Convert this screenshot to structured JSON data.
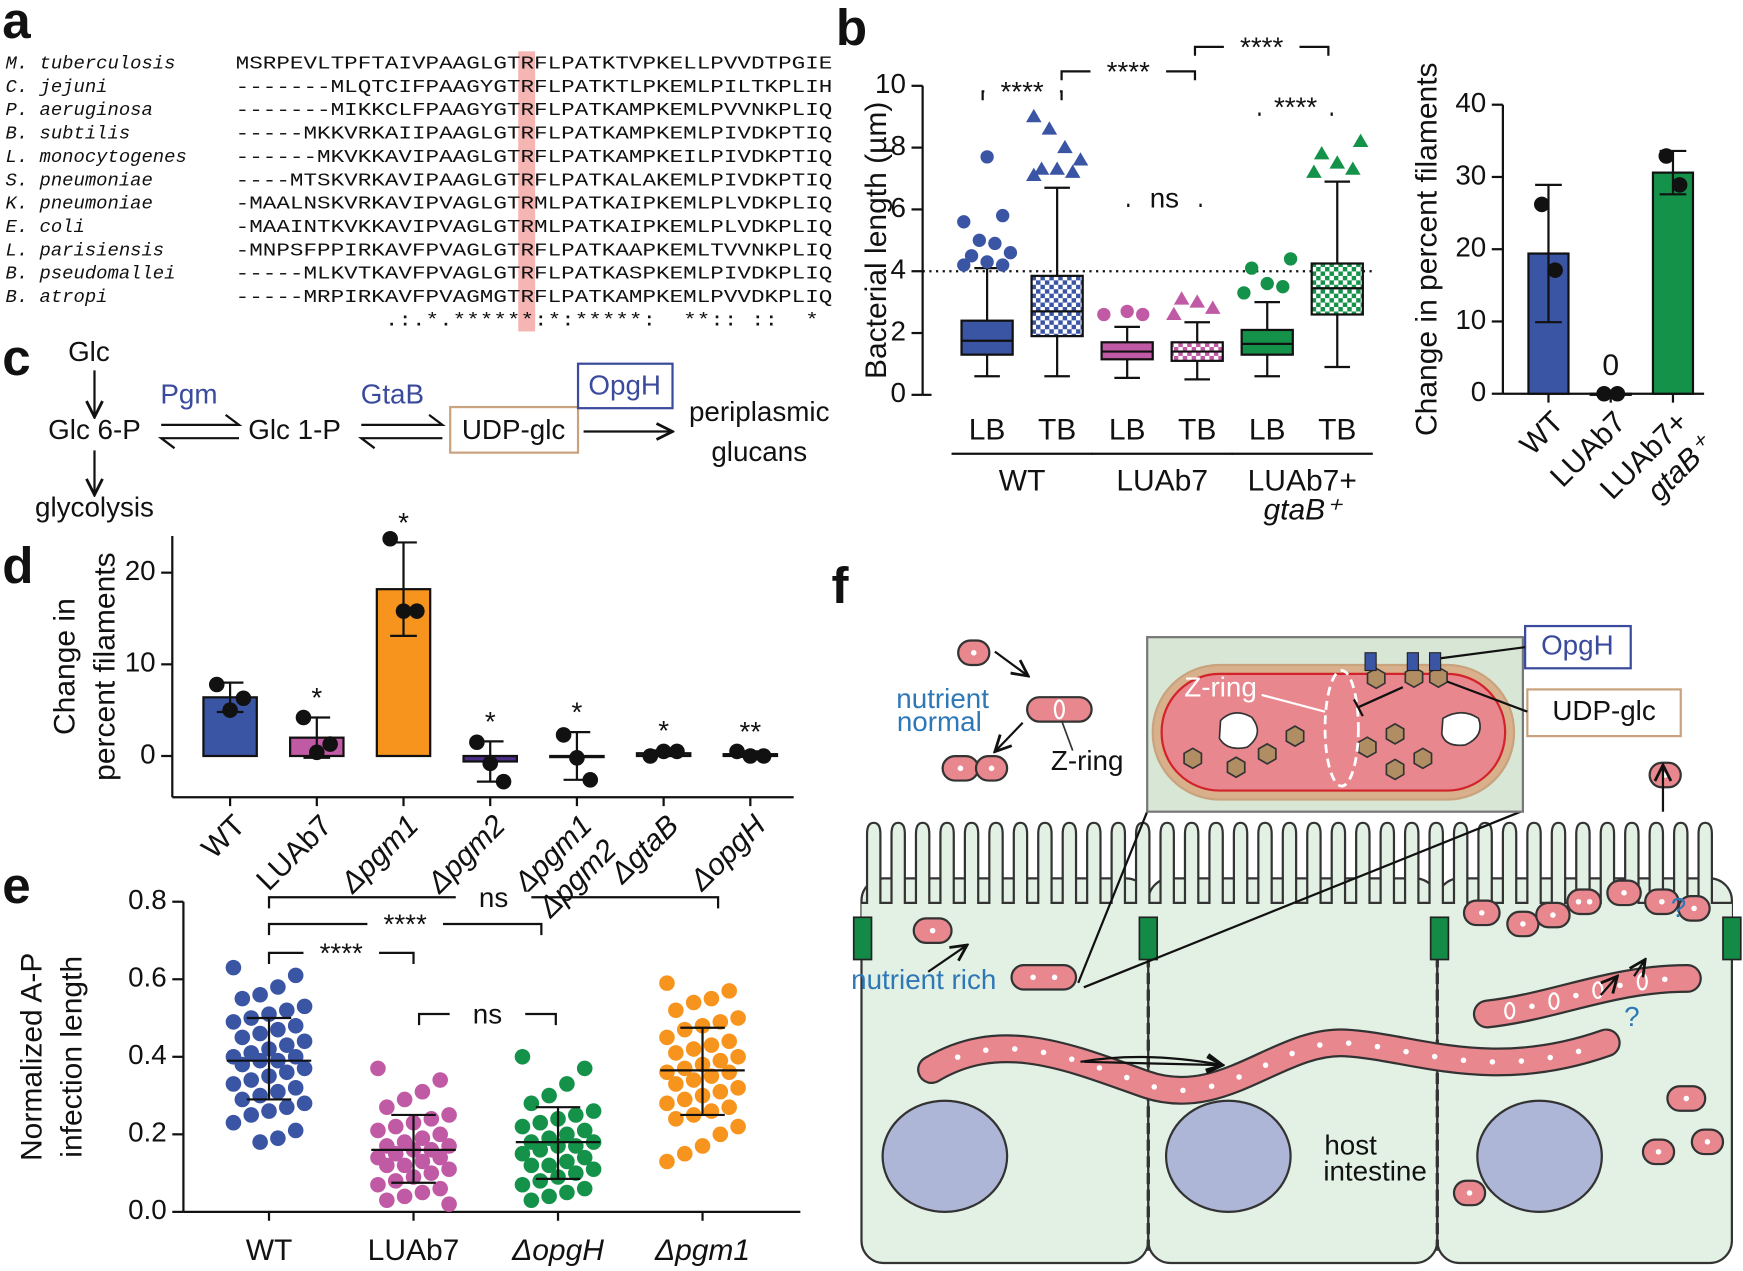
{
  "panel_labels": [
    "a",
    "b",
    "c",
    "d",
    "e",
    "f"
  ],
  "alignment": {
    "rows": [
      {
        "species": "M. tuberculosis",
        "sequence": "MSRPEVLTPFTAIVPAAGLGTRFLPATKTVPKELLPVVDTPGIE"
      },
      {
        "species": "C. jejuni",
        "sequence": "-------MLQTCIFPAAGYGTRFLPATKTLPKEMLPILTKPLIH"
      },
      {
        "species": "P. aeruginosa",
        "sequence": "-------MIKKCLFPAAGYGTRFLPATKAMPKEMLPVVNKPLIQ"
      },
      {
        "species": "B. subtilis",
        "sequence": "-----MKKVRKAIIPAAGLGTRFLPATKAMPKEMLPIVDKPTIQ"
      },
      {
        "species": "L. monocytogenes",
        "sequence": "------MKVKKAVIPAAGLGTRFLPATKAMPKEILPIVDKPTIQ"
      },
      {
        "species": "S. pneumoniae",
        "sequence": "----MTSKVRKAVIPAAGLGTRFLPATKALAKEMLPIVDKPTIQ"
      },
      {
        "species": "K. pneumoniae",
        "sequence": "-MAALNSKVRKAVIPVAGLGTRMLPATKAIPKEMLPLVDKPLIQ"
      },
      {
        "species": "E. coli",
        "sequence": "-MAAINTKVKKAVIPVAGLGTRMLPATKAIPKEMLPLVDKPLIQ"
      },
      {
        "species": "L. parisiensis",
        "sequence": "-MNPSFPPIRKAVFPVAGLGTRFLPATKAAPKEMLTVVNKPLIQ"
      },
      {
        "species": "B. pseudomallei",
        "sequence": "-----MLKVTKAVFPVAGLGTRFLPATKASPKEMLPIVDKPLIQ"
      },
      {
        "species": "B. atropi",
        "sequence": "-----MRPIRKAVFPVAGMGTRFLPATKAMPKEMLPVVDKPLIQ"
      }
    ],
    "consensus": "           .:.*.******:*:*****:  **:: ::  *"
  },
  "pathway": {
    "glc": "Glc",
    "glc6p": "Glc 6-P",
    "glc1p": "Glc 1-P",
    "udp_glc": "UDP-glc",
    "product": [
      "periplasmic",
      "glucans"
    ],
    "glycolysis": "glycolysis",
    "pgm": "Pgm",
    "gtab": "GtaB",
    "opgh": "OpgH"
  },
  "chart_data": [
    {
      "type": "box",
      "ylabel": "Bacterial length (µm)",
      "ylim": [
        0,
        10
      ],
      "yticks": [
        0,
        2,
        4,
        6,
        8,
        10
      ],
      "reference_line": 4,
      "categories": [
        "LB",
        "TB",
        "LB",
        "TB",
        "LB",
        "TB"
      ],
      "groups": [
        [
          "WT"
        ],
        [
          "LUAb7"
        ],
        [
          "LUAb7+",
          "gtaB⁺"
        ]
      ],
      "significance": [
        "****",
        "****",
        "****",
        "ns",
        "****"
      ],
      "series": [
        {
          "color": "#3b55a5",
          "pattern": false,
          "marker": "circle",
          "whisker_low": 0.6,
          "q1": 1.3,
          "median": 1.75,
          "q3": 2.4,
          "whisker_high": 4.1,
          "outliers": [
            4.2,
            4.2,
            4.3,
            4.5,
            4.6,
            4.9,
            5.0,
            5.6,
            5.8,
            7.7
          ]
        },
        {
          "color": "#3b55a5",
          "pattern": true,
          "marker": "triangle",
          "whisker_low": 0.6,
          "q1": 1.9,
          "median": 2.7,
          "q3": 3.85,
          "whisker_high": 6.7,
          "outliers": [
            7.1,
            7.2,
            7.3,
            7.3,
            7.6,
            8.0,
            8.6,
            9.0
          ]
        },
        {
          "color": "#c05aa5",
          "pattern": false,
          "marker": "circle",
          "whisker_low": 0.55,
          "q1": 1.15,
          "median": 1.4,
          "q3": 1.7,
          "whisker_high": 2.2,
          "outliers": [
            2.6,
            2.6,
            2.7
          ]
        },
        {
          "color": "#c05aa5",
          "pattern": true,
          "marker": "triangle",
          "whisker_low": 0.5,
          "q1": 1.1,
          "median": 1.4,
          "q3": 1.7,
          "whisker_high": 2.35,
          "outliers": [
            2.6,
            2.8,
            3.0,
            3.1
          ]
        },
        {
          "color": "#15924a",
          "pattern": false,
          "marker": "circle",
          "whisker_low": 0.6,
          "q1": 1.3,
          "median": 1.65,
          "q3": 2.1,
          "whisker_high": 3.0,
          "outliers": [
            3.3,
            3.5,
            3.6,
            4.1,
            4.4
          ]
        },
        {
          "color": "#15924a",
          "pattern": true,
          "marker": "triangle",
          "whisker_low": 0.9,
          "q1": 2.6,
          "median": 3.45,
          "q3": 4.25,
          "whisker_high": 6.9,
          "outliers": [
            7.2,
            7.3,
            7.5,
            7.8,
            8.2
          ]
        }
      ]
    },
    {
      "type": "bar",
      "ylabel": "Change in percent filaments",
      "ylim": [
        0,
        40
      ],
      "yticks": [
        0,
        10,
        20,
        30,
        40
      ],
      "categories": [
        [
          "WT"
        ],
        [
          "LUAb7"
        ],
        [
          "LUAb7+",
          "gtaB⁺"
        ]
      ],
      "colors": [
        "#3b55a5",
        "#3b55a5",
        "#15924a"
      ],
      "values": [
        19.4,
        0,
        30.6
      ],
      "errors": [
        9.5,
        0,
        3
      ],
      "points": [
        [
          26.2,
          17.1
        ],
        [
          0,
          0
        ],
        [
          32.9,
          28.9
        ]
      ],
      "show_value_label": [
        false,
        true,
        false
      ]
    },
    {
      "type": "bar",
      "ylabel": [
        "Change in",
        "percent filaments"
      ],
      "ylim": [
        -4.5,
        24
      ],
      "yticks": [
        0,
        10,
        20
      ],
      "categories": [
        [
          "WT"
        ],
        [
          "LUAb7"
        ],
        [
          "Δpgm1"
        ],
        [
          "Δpgm2"
        ],
        [
          "Δpgm1",
          "Δpgm2"
        ],
        [
          "ΔgtaB"
        ],
        [
          "ΔopgH"
        ]
      ],
      "colors": [
        "#3b55a5",
        "#c05aa5",
        "#f7941d",
        "#4b2c86",
        "#333333",
        "#333333",
        "#333333"
      ],
      "values": [
        6.4,
        2.0,
        18.2,
        -0.6,
        0.0,
        0.3,
        0.2
      ],
      "errors": [
        1.6,
        2.2,
        5.1,
        2.2,
        2.6,
        0.3,
        0.3
      ],
      "points": [
        [
          7.8,
          5.0,
          6.3
        ],
        [
          4.2,
          0.4,
          1.3
        ],
        [
          23.7,
          15.8,
          15.8
        ],
        [
          1.5,
          -0.8,
          -2.8
        ],
        [
          2.3,
          -0.2,
          -2.6
        ],
        [
          0,
          0.5,
          0.5
        ],
        [
          0.5,
          0,
          0
        ]
      ],
      "significance": [
        null,
        "*",
        "*",
        "*",
        "*",
        "*",
        "**"
      ]
    },
    {
      "type": "strip",
      "ylabel": [
        "Normalized A-P",
        "infection length"
      ],
      "ylim": [
        0,
        0.8
      ],
      "yticks": [
        {
          "value": 0,
          "label": "0.0"
        },
        0.2,
        0.4,
        0.6,
        0.8
      ],
      "categories": [
        "WT",
        "LUAb7",
        "ΔopgH",
        "Δpgm1"
      ],
      "significance": [
        "ns",
        "****",
        "****",
        "ns"
      ],
      "series": [
        {
          "color": "#3b55a5",
          "median": 0.39,
          "lower": 0.29,
          "upper": 0.5,
          "values": [
            0.63,
            0.61,
            0.58,
            0.56,
            0.55,
            0.53,
            0.52,
            0.51,
            0.5,
            0.49,
            0.48,
            0.47,
            0.46,
            0.45,
            0.44,
            0.43,
            0.42,
            0.41,
            0.4,
            0.4,
            0.39,
            0.39,
            0.38,
            0.37,
            0.36,
            0.35,
            0.34,
            0.33,
            0.32,
            0.31,
            0.3,
            0.29,
            0.28,
            0.27,
            0.26,
            0.25,
            0.23,
            0.21,
            0.19,
            0.18
          ]
        },
        {
          "color": "#c05aa5",
          "median": 0.16,
          "lower": 0.075,
          "upper": 0.25,
          "values": [
            0.37,
            0.34,
            0.31,
            0.29,
            0.27,
            0.25,
            0.24,
            0.23,
            0.22,
            0.21,
            0.2,
            0.19,
            0.18,
            0.17,
            0.17,
            0.16,
            0.16,
            0.15,
            0.14,
            0.14,
            0.13,
            0.12,
            0.12,
            0.11,
            0.1,
            0.09,
            0.08,
            0.07,
            0.06,
            0.05,
            0.04,
            0.03,
            0.02
          ]
        },
        {
          "color": "#15924a",
          "median": 0.18,
          "lower": 0.085,
          "upper": 0.27,
          "values": [
            0.4,
            0.37,
            0.33,
            0.3,
            0.28,
            0.26,
            0.25,
            0.24,
            0.23,
            0.22,
            0.21,
            0.2,
            0.19,
            0.18,
            0.18,
            0.17,
            0.17,
            0.16,
            0.15,
            0.14,
            0.13,
            0.12,
            0.12,
            0.11,
            0.1,
            0.09,
            0.08,
            0.07,
            0.06,
            0.05,
            0.04,
            0.03
          ]
        },
        {
          "color": "#f7941d",
          "median": 0.365,
          "lower": 0.25,
          "upper": 0.475,
          "values": [
            0.59,
            0.57,
            0.55,
            0.54,
            0.52,
            0.5,
            0.49,
            0.48,
            0.47,
            0.45,
            0.44,
            0.43,
            0.42,
            0.41,
            0.4,
            0.39,
            0.38,
            0.37,
            0.36,
            0.36,
            0.35,
            0.34,
            0.33,
            0.32,
            0.31,
            0.3,
            0.29,
            0.28,
            0.27,
            0.26,
            0.25,
            0.24,
            0.22,
            0.2,
            0.17,
            0.15,
            0.13
          ]
        }
      ]
    }
  ],
  "model": {
    "nutrient_normal": [
      "nutrient",
      "normal"
    ],
    "z_ring_small": "Z-ring",
    "z_ring_inset": "Z-ring",
    "opgh": "OpgH",
    "udp_glc": "UDP-glc",
    "nutrient_rich": "nutrient rich",
    "question_marks": [
      "?",
      "?"
    ],
    "host_intestine": [
      "host",
      "intestine"
    ]
  }
}
